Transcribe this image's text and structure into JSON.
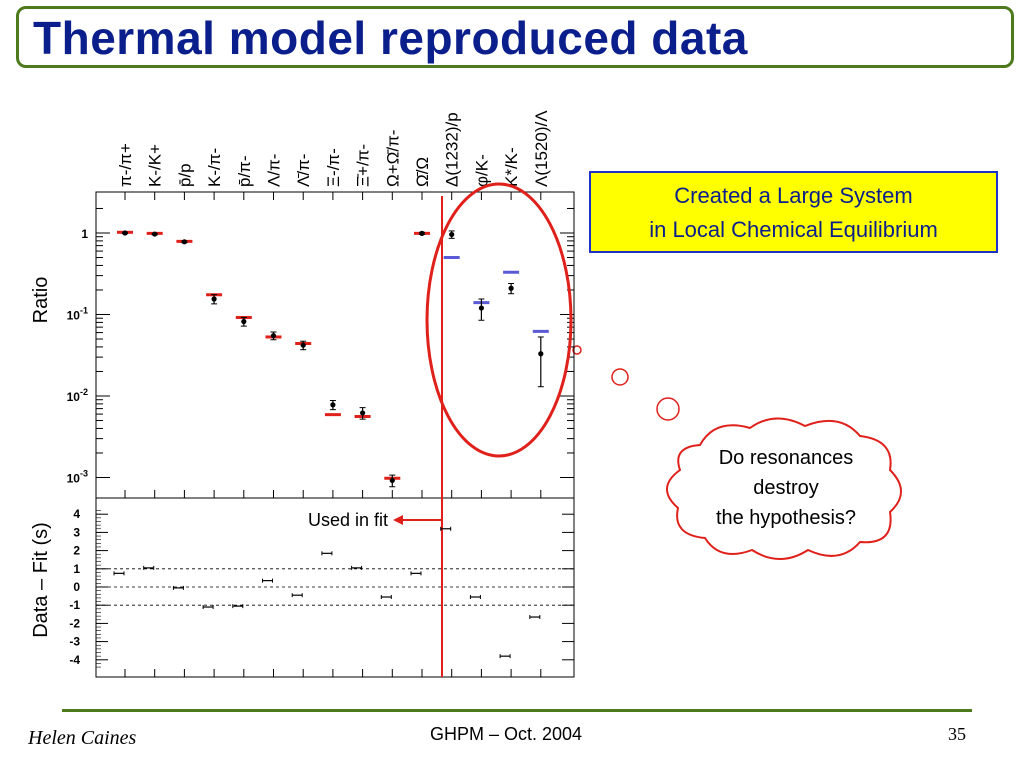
{
  "slide": {
    "title": "Thermal model reproduced data",
    "callout_lines": [
      "Created a Large System",
      "in Local Chemical Equilibrium"
    ],
    "cloud_lines": [
      "Do resonances",
      "destroy",
      "the hypothesis?"
    ],
    "used_in_fit": "Used in fit",
    "footer_left": "Helen Caines",
    "footer_center": "GHPM – Oct. 2004",
    "page_number": "35"
  },
  "colors": {
    "title": "#0b1f8c",
    "frame": "#4e7a1e",
    "fit_marker": "#e0201a",
    "resonance_fit": "#5a5ad6",
    "ellipse": "#e0201a",
    "callout_bg": "#ffff00"
  },
  "chart_data": [
    {
      "type": "scatter",
      "ylabel": "Ratio",
      "yscale": "log",
      "ylim": [
        0.0006,
        3
      ],
      "ytick_labels": [
        "1",
        "10-1",
        "10-2",
        "10-3"
      ],
      "categories": [
        "π-/π+",
        "K-/K+",
        "p̄/p",
        "K-/π-",
        "p̄/π-",
        "Λ/π-",
        "Λ̄/π-",
        "Ξ-/π-",
        "Ξ̄+/π-",
        "Ω+Ω̄/π-",
        "Ω̄/Ω",
        "Δ(1232)/p",
        "φ/K-",
        "K*/K-",
        "Λ(1520)/Λ"
      ],
      "series": [
        {
          "values": [
            1.0,
            0.97,
            0.78,
            0.155,
            0.082,
            0.055,
            0.042,
            0.0078,
            0.0062,
            0.00092,
            0.99,
            0.96,
            0.12,
            0.21,
            0.033
          ],
          "errors": [
            0.02,
            0.02,
            0.02,
            0.02,
            0.01,
            0.006,
            0.005,
            0.001,
            0.001,
            0.00015,
            0.03,
            0.1,
            0.035,
            0.03,
            0.02
          ]
        },
        {
          "values": [
            1.02,
            0.99,
            0.79,
            0.175,
            0.092,
            0.053,
            0.044,
            0.0059,
            0.0056,
            0.00098,
            0.99,
            null,
            null,
            null,
            null
          ]
        },
        {
          "values": [
            null,
            null,
            null,
            null,
            null,
            null,
            null,
            null,
            null,
            null,
            null,
            0.5,
            0.14,
            0.33,
            0.062
          ]
        }
      ]
    },
    {
      "type": "scatter",
      "ylabel": "Data – Fit (s)",
      "ylim": [
        -4.5,
        4.5
      ],
      "yticks": [
        4,
        3,
        2,
        1,
        0,
        -1,
        -2,
        -3,
        -4
      ],
      "reference_lines": [
        1,
        0,
        -1
      ],
      "categories": [
        "π-/π+",
        "K-/K+",
        "p̄/p",
        "K-/π-",
        "p̄/π-",
        "Λ/π-",
        "Λ̄/π-",
        "Ξ-/π-",
        "Ξ̄+/π-",
        "Ω+Ω̄/π-",
        "Ω̄/Ω",
        "Δ(1232)/p",
        "φ/K-",
        "K*/K-",
        "Λ(1520)/Λ"
      ],
      "series": [
        {
          "values": [
            0.75,
            1.05,
            -0.05,
            -1.1,
            -1.05,
            0.35,
            -0.45,
            1.85,
            1.05,
            -0.55,
            0.75,
            3.2,
            -0.55,
            -3.8,
            -1.65
          ]
        }
      ]
    }
  ]
}
